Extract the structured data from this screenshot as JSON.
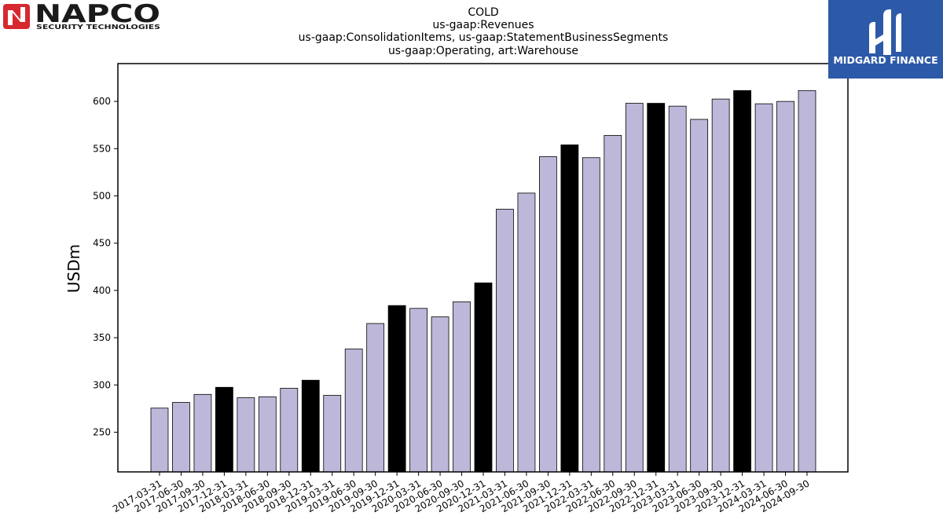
{
  "logos": {
    "left": {
      "word": "NAPCO",
      "sub": "SECURITY TECHNOLOGIES"
    },
    "right": {
      "word": "MIDGARD FINANCE"
    }
  },
  "chart_data": {
    "type": "bar",
    "title_lines": [
      "COLD",
      "us-gaap:Revenues",
      "us-gaap:ConsolidationItems, us-gaap:StatementBusinessSegments",
      "us-gaap:Operating, art:Warehouse"
    ],
    "xlabel": "",
    "ylabel": "USDm",
    "ylim": [
      208,
      640
    ],
    "yticks": [
      250,
      300,
      350,
      400,
      450,
      500,
      550,
      600
    ],
    "grid": false,
    "colors": {
      "default": "#bdb8d9",
      "highlight": "#000000",
      "edge": "#000000"
    },
    "categories": [
      "2017-03-31",
      "2017-06-30",
      "2017-09-30",
      "2017-12-31",
      "2018-03-31",
      "2018-06-30",
      "2018-09-30",
      "2018-12-31",
      "2019-03-31",
      "2019-06-30",
      "2019-09-30",
      "2019-12-31",
      "2020-03-31",
      "2020-06-30",
      "2020-09-30",
      "2020-12-31",
      "2021-03-31",
      "2021-06-30",
      "2021-09-30",
      "2021-12-31",
      "2022-03-31",
      "2022-06-30",
      "2022-09-30",
      "2022-12-31",
      "2023-03-31",
      "2023-06-30",
      "2023-09-30",
      "2023-12-31",
      "2024-03-31",
      "2024-06-30",
      "2024-09-30"
    ],
    "values": [
      275.5,
      281.5,
      290,
      297.5,
      286.5,
      287.5,
      296.5,
      305,
      289,
      338,
      365,
      384,
      381,
      372,
      388,
      408,
      486,
      503,
      541.5,
      554,
      540.5,
      564,
      598,
      598,
      595,
      581,
      602.5,
      611.5,
      597.5,
      600,
      611.5
    ],
    "highlight": [
      false,
      false,
      false,
      true,
      false,
      false,
      false,
      true,
      false,
      false,
      false,
      true,
      false,
      false,
      false,
      true,
      false,
      false,
      false,
      true,
      false,
      false,
      false,
      true,
      false,
      false,
      false,
      true,
      false,
      false,
      false
    ]
  }
}
